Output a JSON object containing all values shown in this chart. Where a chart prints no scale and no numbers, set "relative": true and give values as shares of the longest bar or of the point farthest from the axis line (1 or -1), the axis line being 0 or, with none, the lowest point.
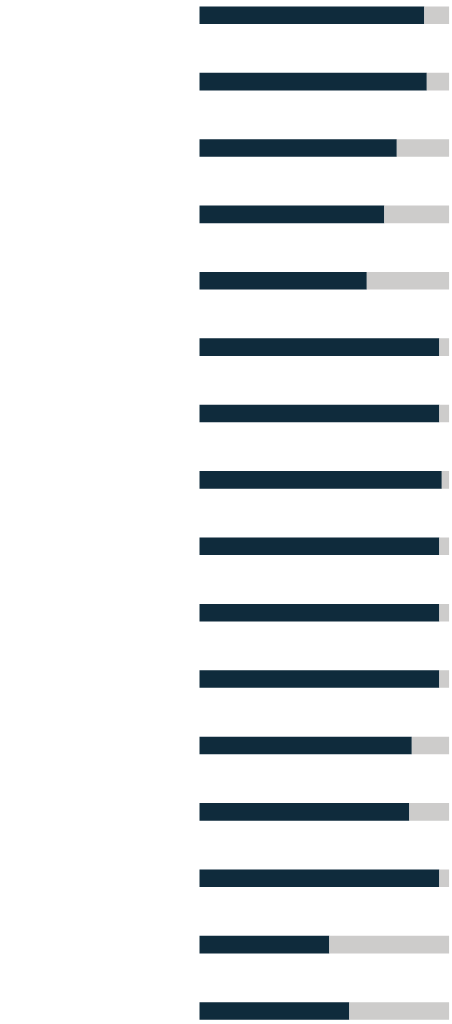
{
  "chart_data": {
    "type": "bar",
    "orientation": "horizontal",
    "stacked": true,
    "relative": true,
    "categories": [
      null,
      null,
      null,
      null,
      null,
      null,
      null,
      null,
      null,
      null,
      null,
      null,
      null,
      null,
      null,
      null
    ],
    "series": [
      {
        "color": "#0f2b3c",
        "values": [
          0.9,
          0.91,
          0.79,
          0.74,
          0.67,
          0.96,
          0.96,
          0.97,
          0.96,
          0.96,
          0.96,
          0.85,
          0.84,
          0.96,
          0.52,
          0.6
        ]
      },
      {
        "color": "#cdcccb",
        "values": [
          0.1,
          0.09,
          0.21,
          0.26,
          0.33,
          0.04,
          0.04,
          0.03,
          0.04,
          0.04,
          0.04,
          0.15,
          0.16,
          0.04,
          0.48,
          0.4
        ]
      }
    ]
  }
}
